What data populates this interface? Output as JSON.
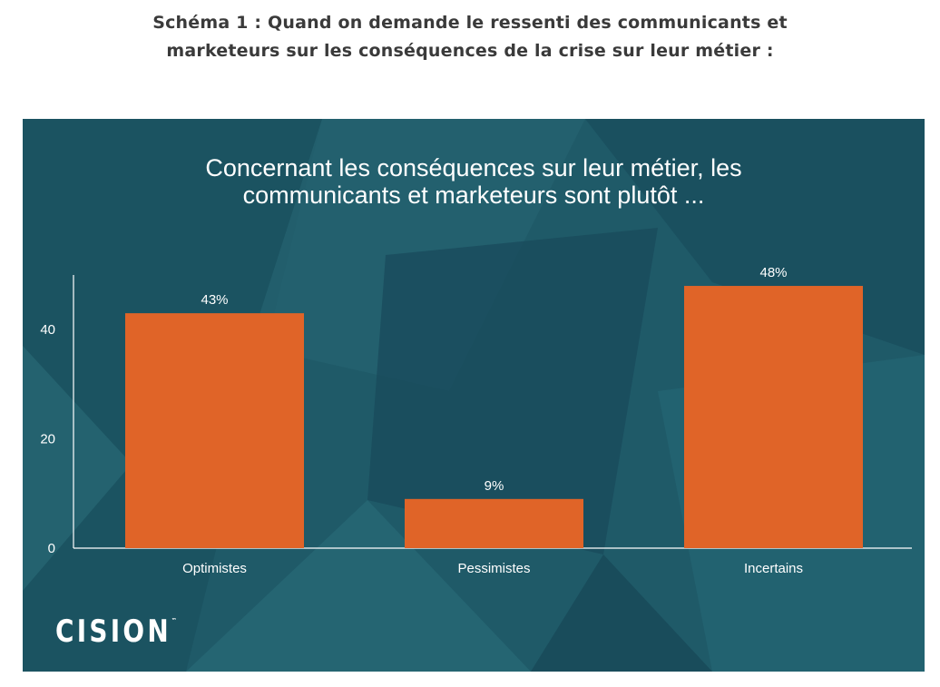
{
  "caption": {
    "line1": "Schéma 1 : Quand on demande le ressenti des communicants et",
    "line2": "marketeurs sur les conséquences de la crise sur leur métier :"
  },
  "logo": {
    "text": "CISION",
    "mark": "™"
  },
  "colors": {
    "bar": "#e06428",
    "panel": "#1f5a68",
    "axis": "#ffffff"
  },
  "chart_data": {
    "type": "bar",
    "title_lines": [
      "Concernant les conséquences sur leur métier, les",
      "communicants et marketeurs sont plutôt ..."
    ],
    "categories": [
      "Optimistes",
      "Pessimistes",
      "Incertains"
    ],
    "values": [
      43,
      9,
      48
    ],
    "data_labels": [
      "43%",
      "9%",
      "48%"
    ],
    "y_ticks": [
      0,
      20,
      40
    ],
    "ylim": [
      0,
      50
    ],
    "xlabel": "",
    "ylabel": "",
    "grid": false
  }
}
